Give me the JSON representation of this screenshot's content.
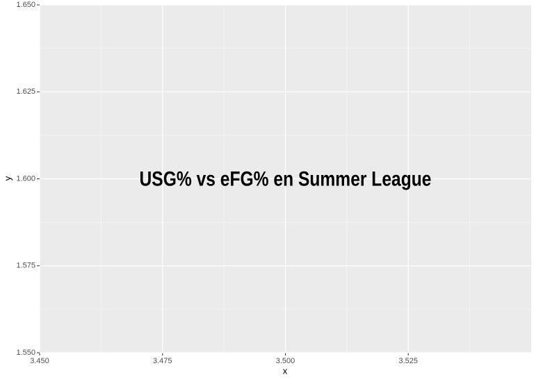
{
  "chart_data": {
    "type": "scatter",
    "x_label": "x",
    "y_label": "y",
    "xlim": [
      3.45,
      3.55
    ],
    "ylim": [
      1.55,
      1.65
    ],
    "xticks": [
      {
        "value": 3.45,
        "label": "3.450"
      },
      {
        "value": 3.475,
        "label": "3.475"
      },
      {
        "value": 3.5,
        "label": "3.500"
      },
      {
        "value": 3.525,
        "label": "3.525"
      }
    ],
    "yticks": [
      {
        "value": 1.55,
        "label": "1.550"
      },
      {
        "value": 1.575,
        "label": "1.575"
      },
      {
        "value": 1.6,
        "label": "1.600"
      },
      {
        "value": 1.625,
        "label": "1.625"
      },
      {
        "value": 1.65,
        "label": "1.650"
      }
    ],
    "grid": true,
    "minor_grid": true,
    "annotations": [
      {
        "text": "USG% vs eFG% en Summer League",
        "x": 3.5,
        "y": 1.6
      }
    ],
    "x": [],
    "y": []
  }
}
